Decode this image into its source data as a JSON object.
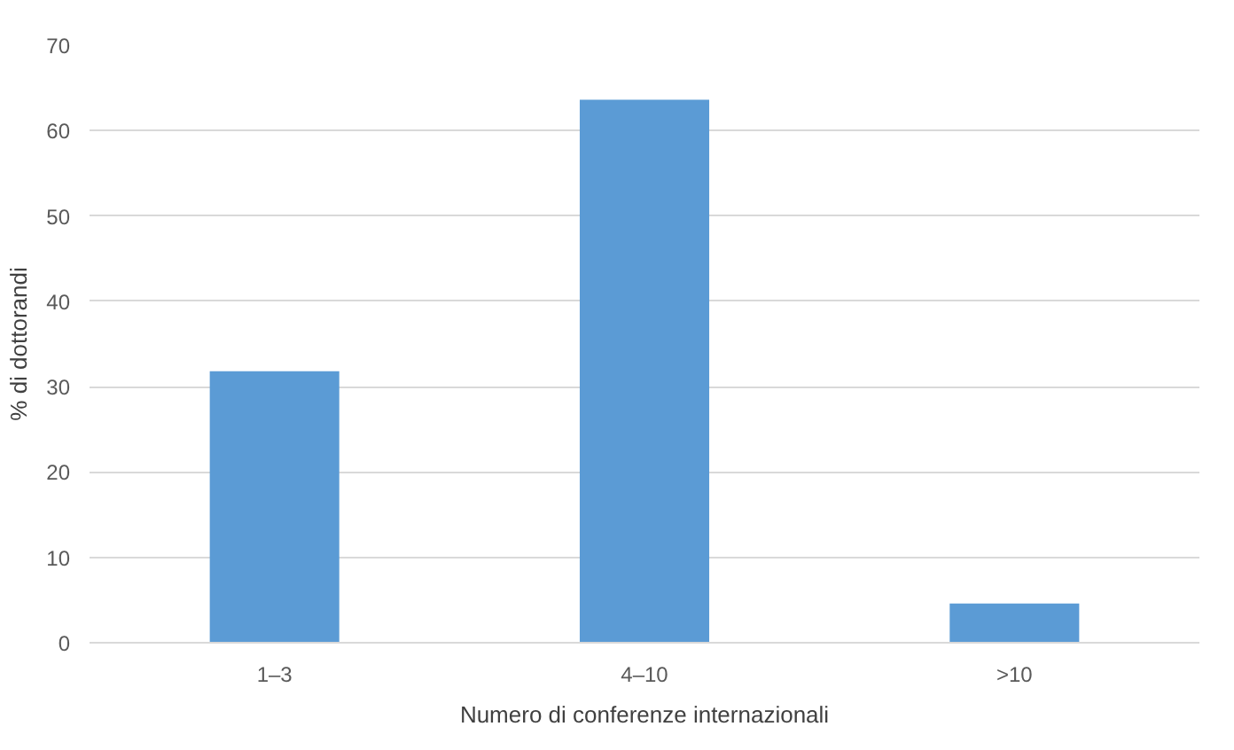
{
  "chart_data": {
    "type": "bar",
    "xlabel": "Numero di conferenze internazionali",
    "ylabel": "% di dottorandi",
    "categories": [
      "1–3",
      "4–10",
      ">10"
    ],
    "values": [
      31.8,
      63.6,
      4.6
    ],
    "color": "#5b9bd5",
    "ylim": [
      0,
      70
    ],
    "yticks": [
      0,
      10,
      20,
      30,
      40,
      50,
      60,
      70
    ],
    "grid": "y"
  }
}
